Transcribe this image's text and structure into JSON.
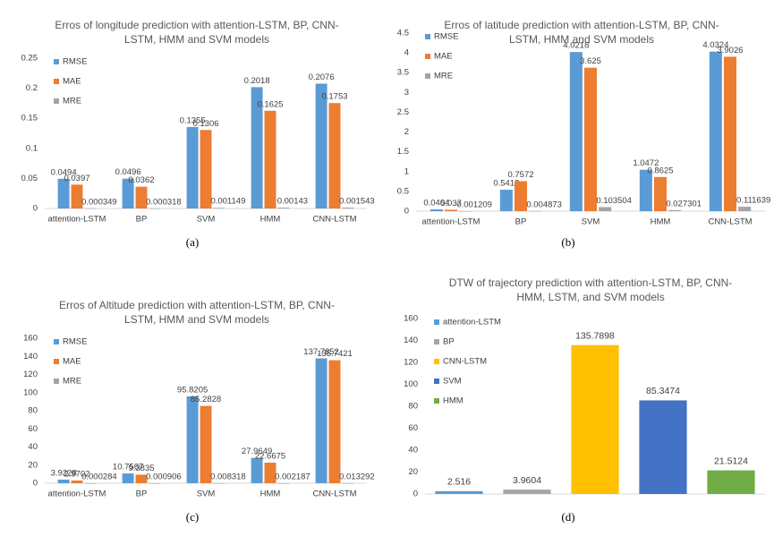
{
  "chart_data": [
    {
      "type": "bar",
      "title": "Erros of longitude prediction with attention-LSTM, BP, CNN-LSTM, HMM and SVM models",
      "caption": "(a)",
      "categories": [
        "attention-LSTM",
        "BP",
        "SVM",
        "HMM",
        "CNN-LSTM"
      ],
      "series": [
        {
          "name": "RMSE",
          "color": "#5b9bd5",
          "values": [
            0.0494,
            0.0496,
            0.1355,
            0.2018,
            0.2076
          ]
        },
        {
          "name": "MAE",
          "color": "#ed7d31",
          "values": [
            0.0397,
            0.0362,
            0.1306,
            0.1625,
            0.1753
          ]
        },
        {
          "name": "MRE",
          "color": "#a5a5a5",
          "values": [
            0.000349,
            0.000318,
            0.001149,
            0.00143,
            0.001543
          ]
        }
      ],
      "ylim": [
        0,
        0.25
      ],
      "yticks": [
        0,
        0.05,
        0.1,
        0.15,
        0.2,
        0.25
      ],
      "legend": "upper-left"
    },
    {
      "type": "bar",
      "title": "Erros of latitude prediction with attention-LSTM, BP, CNN-LSTM, HMM and SVM models",
      "caption": "(b)",
      "categories": [
        "attention-LSTM",
        "BP",
        "SVM",
        "HMM",
        "CNN-LSTM"
      ],
      "series": [
        {
          "name": "RMSE",
          "color": "#5b9bd5",
          "values": [
            0.0464,
            0.5418,
            4.0218,
            1.0472,
            4.0324
          ]
        },
        {
          "name": "MAE",
          "color": "#ed7d31",
          "values": [
            0.037,
            0.7572,
            3.625,
            0.8625,
            3.9026
          ]
        },
        {
          "name": "MRE",
          "color": "#a5a5a5",
          "values": [
            0.001209,
            0.004873,
            0.103504,
            0.027301,
            0.111639
          ]
        }
      ],
      "ylim": [
        0,
        4.5
      ],
      "yticks": [
        0,
        0.5,
        1,
        1.5,
        2,
        2.5,
        3,
        3.5,
        4,
        4.5
      ],
      "legend": "upper-left"
    },
    {
      "type": "bar",
      "title": "Erros of Altitude prediction with attention-LSTM, BP, CNN-LSTM, HMM and SVM models",
      "caption": "(c)",
      "categories": [
        "attention-LSTM",
        "BP",
        "SVM",
        "HMM",
        "CNN-LSTM"
      ],
      "series": [
        {
          "name": "RMSE",
          "color": "#5b9bd5",
          "values": [
            3.9228,
            10.7567,
            95.8205,
            27.9649,
            137.7852
          ]
        },
        {
          "name": "MAE",
          "color": "#ed7d31",
          "values": [
            2.9702,
            9.3835,
            85.2828,
            22.6675,
            135.7421
          ]
        },
        {
          "name": "MRE",
          "color": "#a5a5a5",
          "values": [
            0.000284,
            0.000906,
            0.008318,
            0.002187,
            0.013292
          ]
        }
      ],
      "ylim": [
        0,
        160
      ],
      "yticks": [
        0,
        20,
        40,
        60,
        80,
        100,
        120,
        140,
        160
      ],
      "legend": "upper-left"
    },
    {
      "type": "colorbar",
      "title": "DTW of trajectory prediction with attention-LSTM, BP, CNN-HMM, LSTM, and SVM models",
      "caption": "(d)",
      "categories": [
        "attention-LSTM",
        "BP",
        "CNN-LSTM",
        "SVM",
        "HMM"
      ],
      "values": [
        2.516,
        3.9604,
        135.7898,
        85.3474,
        21.5124
      ],
      "colors": [
        "#5b9bd5",
        "#a5a5a5",
        "#ffc000",
        "#4472c4",
        "#70ad47"
      ],
      "ylim": [
        0,
        160
      ],
      "yticks": [
        0,
        20,
        40,
        60,
        80,
        100,
        120,
        140,
        160
      ],
      "legend": "upper-left"
    }
  ]
}
